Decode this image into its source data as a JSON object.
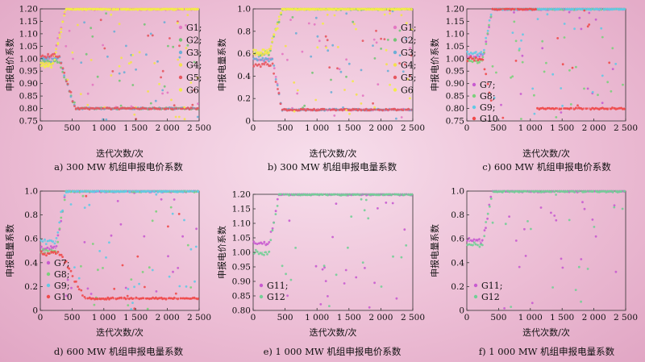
{
  "figure": {
    "colors": {
      "G1": "#e377c2",
      "G2": "#74c476",
      "G3": "#6baed6",
      "G4": "#f4e04d",
      "G5": "#e6565f",
      "G6": "#f3ec49",
      "G7": "#c85bd0",
      "G8": "#7bd07b",
      "G9": "#62c9e6",
      "G10": "#f04a4a",
      "G11": "#c85bd0",
      "G12": "#72cf96"
    }
  },
  "chart_data": [
    {
      "type": "scatter",
      "caption": "a) 300 MW 机组申报电价系数",
      "xlabel": "迭代次数/次",
      "ylabel": "申报电价系数",
      "xlim": [
        0,
        2500
      ],
      "ylim": [
        0.75,
        1.2
      ],
      "xticks": [
        "0",
        "500",
        "1 000",
        "1 500",
        "2 000",
        "2 500"
      ],
      "yticks": [
        "0.75",
        "0.80",
        "0.85",
        "0.90",
        "0.95",
        "1.00",
        "1.05",
        "1.10",
        "1.15",
        "1.20"
      ],
      "legend": [
        "G1;",
        "G2;",
        "G3;",
        "G4;",
        "G5;",
        "G6"
      ],
      "series": [
        {
          "name": "G1",
          "start": 1.0,
          "final": 1.2,
          "trans": [
            200,
            400
          ],
          "dip": null
        },
        {
          "name": "G2",
          "start": 0.99,
          "final": 0.8,
          "trans": [
            300,
            550
          ],
          "dip": null
        },
        {
          "name": "G3",
          "start": 1.0,
          "final": 0.8,
          "trans": [
            300,
            550
          ],
          "dip": null
        },
        {
          "name": "G4",
          "start": 0.98,
          "final": 1.2,
          "trans": [
            200,
            400
          ],
          "dip": null
        },
        {
          "name": "G5",
          "start": 1.01,
          "final": 0.8,
          "trans": [
            300,
            550
          ],
          "dip": null
        },
        {
          "name": "G6",
          "start": 0.97,
          "final": 1.2,
          "trans": [
            200,
            400
          ],
          "dip": null
        }
      ]
    },
    {
      "type": "scatter",
      "caption": "b) 300 MW 机组申报电量系数",
      "xlabel": "迭代次数/次",
      "ylabel": "申报电量系数",
      "xlim": [
        0,
        2500
      ],
      "ylim": [
        0,
        1.0
      ],
      "xticks": [
        "0",
        "500",
        "1 000",
        "1 500",
        "2 000",
        "2 500"
      ],
      "yticks": [
        "0",
        "0.2",
        "0.4",
        "0.6",
        "0.8",
        "1.0"
      ],
      "legend": [
        "G1;",
        "G2;",
        "G3;",
        "G4;",
        "G5;",
        "G6"
      ],
      "series": [
        {
          "name": "G1",
          "start": 0.55,
          "final": 0.1,
          "trans": [
            300,
            450
          ],
          "dip": null
        },
        {
          "name": "G2",
          "start": 0.6,
          "final": 1.0,
          "trans": [
            250,
            450
          ],
          "dip": null
        },
        {
          "name": "G3",
          "start": 0.55,
          "final": 0.1,
          "trans": [
            300,
            450
          ],
          "dip": null
        },
        {
          "name": "G4",
          "start": 0.6,
          "final": 1.0,
          "trans": [
            250,
            450
          ],
          "dip": null
        },
        {
          "name": "G5",
          "start": 0.5,
          "final": 0.1,
          "trans": [
            300,
            450
          ],
          "dip": null
        },
        {
          "name": "G6",
          "start": 0.62,
          "final": 1.0,
          "trans": [
            250,
            450
          ],
          "dip": null
        }
      ]
    },
    {
      "type": "scatter",
      "caption": "c) 600 MW 机组申报电价系数",
      "xlabel": "迭代次数/次",
      "ylabel": "申报电价系数",
      "xlim": [
        0,
        2500
      ],
      "ylim": [
        0.75,
        1.2
      ],
      "xticks": [
        "0",
        "500",
        "1 000",
        "1 500",
        "2 000",
        "2 500"
      ],
      "yticks": [
        "0.75",
        "0.80",
        "0.85",
        "0.90",
        "0.95",
        "1.00",
        "1.05",
        "1.10",
        "1.15",
        "1.20"
      ],
      "legend": [
        "G7;",
        "G8;",
        "G9;",
        "G10"
      ],
      "series": [
        {
          "name": "G7",
          "start": 1.01,
          "final": 1.2,
          "trans": [
            250,
            400
          ],
          "dip": null
        },
        {
          "name": "G8",
          "start": 0.99,
          "final": 1.2,
          "trans": [
            250,
            400
          ],
          "dip": null
        },
        {
          "name": "G9",
          "start": 1.02,
          "final": 1.2,
          "trans": [
            250,
            400
          ],
          "dip": null
        },
        {
          "name": "G10",
          "start": 1.0,
          "final": 0.8,
          "trans": [
            250,
            400
          ],
          "dip": [
            400,
            1100,
            1.2
          ]
        }
      ]
    },
    {
      "type": "scatter",
      "caption": "d) 600 MW 机组申报电量系数",
      "xlabel": "迭代次数/次",
      "ylabel": "申报电量系数",
      "xlim": [
        0,
        2500
      ],
      "ylim": [
        0,
        1.0
      ],
      "xticks": [
        "0",
        "500",
        "1 000",
        "1 500",
        "2 000",
        "2 500"
      ],
      "yticks": [
        "0",
        "0.2",
        "0.4",
        "0.6",
        "0.8",
        "1.0"
      ],
      "legend": [
        "G7;",
        "G8;",
        "G9;",
        "G10"
      ],
      "series": [
        {
          "name": "G7",
          "start": 0.52,
          "final": 1.0,
          "trans": [
            250,
            400
          ],
          "dip": null
        },
        {
          "name": "G8",
          "start": 0.5,
          "final": 1.0,
          "trans": [
            250,
            400
          ],
          "dip": null
        },
        {
          "name": "G9",
          "start": 0.58,
          "final": 1.0,
          "trans": [
            250,
            400
          ],
          "dip": null
        },
        {
          "name": "G10",
          "start": 0.48,
          "final": 0.1,
          "trans": [
            300,
            700
          ],
          "dip": null
        }
      ]
    },
    {
      "type": "scatter",
      "caption": "e) 1 000 MW 机组申报电价系数",
      "xlabel": "迭代次数/次",
      "ylabel": "申报电价系数",
      "xlim": [
        0,
        2500
      ],
      "ylim": [
        0.8,
        1.2
      ],
      "xticks": [
        "0",
        "500",
        "1 000",
        "1 500",
        "2 000",
        "2 500"
      ],
      "yticks": [
        "0.80",
        "0.85",
        "0.90",
        "0.95",
        "1.00",
        "1.05",
        "1.10",
        "1.15",
        "1.20"
      ],
      "legend": [
        "G11;",
        "G12"
      ],
      "series": [
        {
          "name": "G11",
          "start": 1.03,
          "final": 1.2,
          "trans": [
            250,
            400
          ],
          "dip": null
        },
        {
          "name": "G12",
          "start": 1.0,
          "final": 1.2,
          "trans": [
            250,
            400
          ],
          "dip": null
        }
      ]
    },
    {
      "type": "scatter",
      "caption": "f) 1 000 MW 机组申报电量系数",
      "xlabel": "迭代次数/次",
      "ylabel": "申报电量系数",
      "xlim": [
        0,
        2500
      ],
      "ylim": [
        0,
        1.0
      ],
      "xticks": [
        "0",
        "500",
        "1 000",
        "1 500",
        "2 000",
        "2 500"
      ],
      "yticks": [
        "0",
        "0.2",
        "0.4",
        "0.6",
        "0.8",
        "1.0"
      ],
      "legend": [
        "G11;",
        "G12"
      ],
      "series": [
        {
          "name": "G11",
          "start": 0.58,
          "final": 1.0,
          "trans": [
            250,
            400
          ],
          "dip": null
        },
        {
          "name": "G12",
          "start": 0.55,
          "final": 1.0,
          "trans": [
            250,
            400
          ],
          "dip": null
        }
      ]
    }
  ]
}
